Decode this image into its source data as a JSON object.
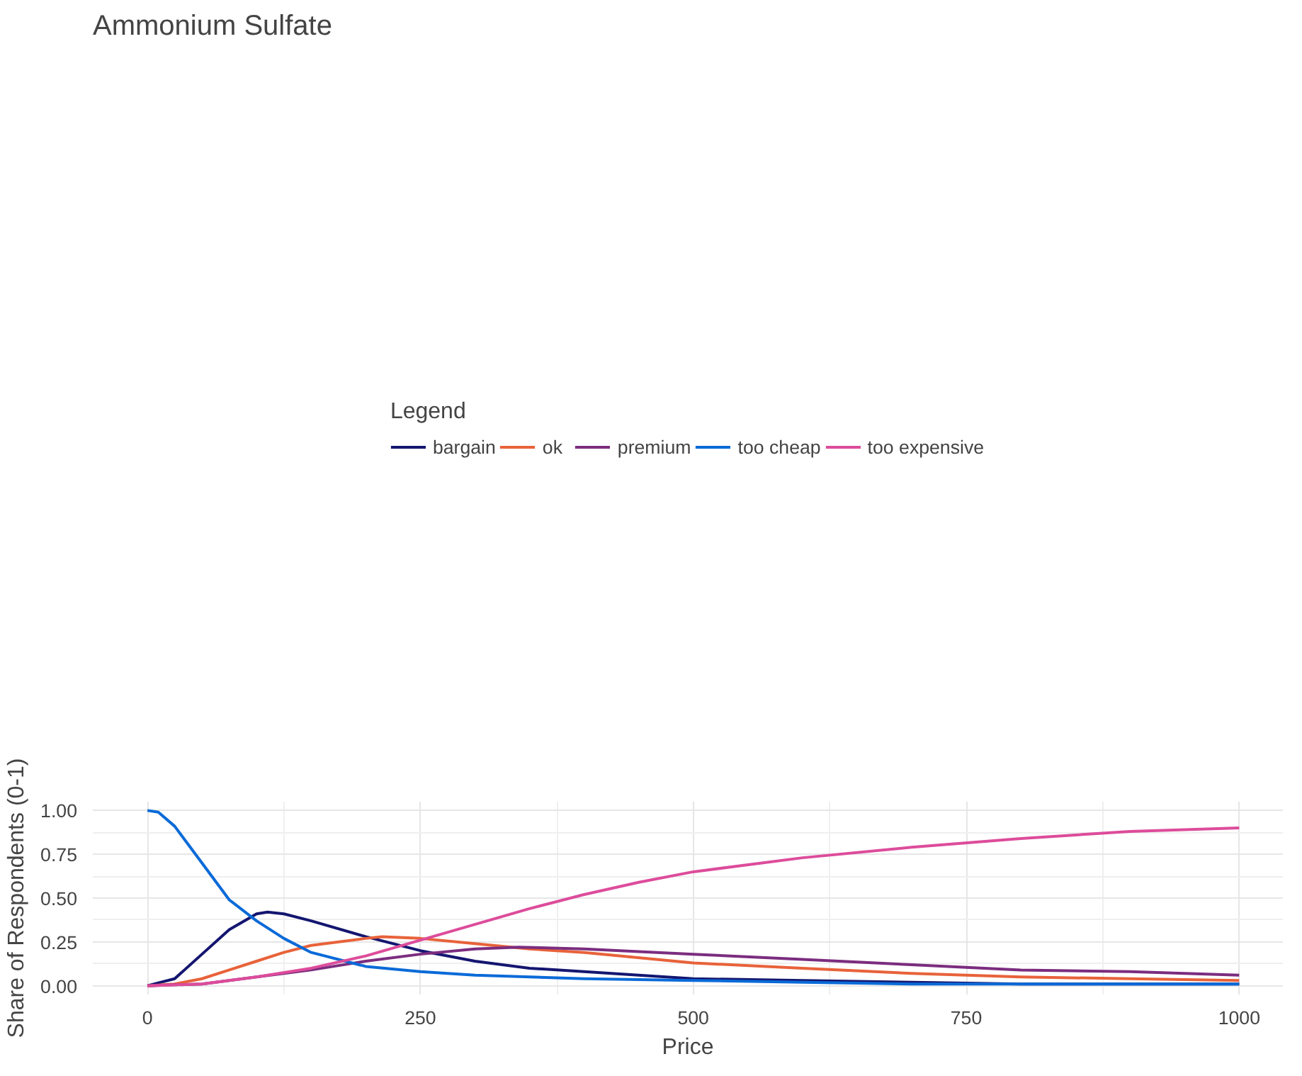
{
  "chart_data": {
    "type": "line",
    "title": "Ammonium Sulfate",
    "xlabel": "Price",
    "ylabel": "Share of Respondents (0-1)",
    "legend_title": "Legend",
    "legend": "top",
    "grid": true,
    "marker": "none",
    "line_style": "solid",
    "xlim": [
      -50,
      1040
    ],
    "ylim": [
      -0.05,
      1.05
    ],
    "xticks": [
      0,
      250,
      500,
      750,
      1000
    ],
    "yticks": [
      {
        "value": 0,
        "label": "0.00"
      },
      {
        "value": 0.25,
        "label": "0.25"
      },
      {
        "value": 0.5,
        "label": "0.50"
      },
      {
        "value": 0.75,
        "label": "0.75"
      },
      {
        "value": 1,
        "label": "1.00"
      }
    ],
    "series": [
      {
        "name": "bargain",
        "color": "#141670",
        "x": [
          0,
          25,
          50,
          75,
          100,
          110,
          125,
          150,
          200,
          250,
          300,
          350,
          400,
          500,
          600,
          700,
          800,
          900,
          1000
        ],
        "values": [
          0,
          0.04,
          0.18,
          0.32,
          0.41,
          0.42,
          0.41,
          0.37,
          0.28,
          0.2,
          0.14,
          0.1,
          0.08,
          0.04,
          0.03,
          0.02,
          0.01,
          0.01,
          0.01
        ]
      },
      {
        "name": "ok",
        "color": "#e8623a",
        "x": [
          0,
          25,
          50,
          75,
          100,
          125,
          150,
          200,
          215,
          250,
          300,
          350,
          400,
          500,
          600,
          700,
          800,
          900,
          1000
        ],
        "values": [
          0,
          0.01,
          0.04,
          0.09,
          0.14,
          0.19,
          0.23,
          0.27,
          0.28,
          0.27,
          0.24,
          0.21,
          0.19,
          0.13,
          0.1,
          0.07,
          0.05,
          0.04,
          0.03
        ]
      },
      {
        "name": "premium",
        "color": "#7b2d7f",
        "x": [
          0,
          50,
          100,
          150,
          200,
          250,
          300,
          340,
          400,
          500,
          600,
          700,
          800,
          900,
          1000
        ],
        "values": [
          0,
          0.01,
          0.05,
          0.09,
          0.14,
          0.18,
          0.21,
          0.22,
          0.21,
          0.18,
          0.15,
          0.12,
          0.09,
          0.08,
          0.06
        ]
      },
      {
        "name": "too cheap",
        "color": "#0a6ad8",
        "x": [
          0,
          10,
          25,
          50,
          75,
          100,
          125,
          150,
          200,
          250,
          300,
          400,
          500,
          600,
          700,
          800,
          900,
          1000
        ],
        "values": [
          1,
          0.99,
          0.91,
          0.7,
          0.49,
          0.37,
          0.27,
          0.19,
          0.11,
          0.08,
          0.06,
          0.04,
          0.03,
          0.02,
          0.01,
          0.01,
          0.01,
          0.01
        ]
      },
      {
        "name": "too expensive",
        "color": "#dd4c9b",
        "x": [
          0,
          50,
          100,
          150,
          200,
          250,
          300,
          350,
          400,
          450,
          500,
          600,
          700,
          800,
          900,
          1000
        ],
        "values": [
          0,
          0.01,
          0.05,
          0.1,
          0.17,
          0.26,
          0.35,
          0.44,
          0.52,
          0.59,
          0.65,
          0.73,
          0.79,
          0.84,
          0.88,
          0.9
        ]
      }
    ]
  }
}
